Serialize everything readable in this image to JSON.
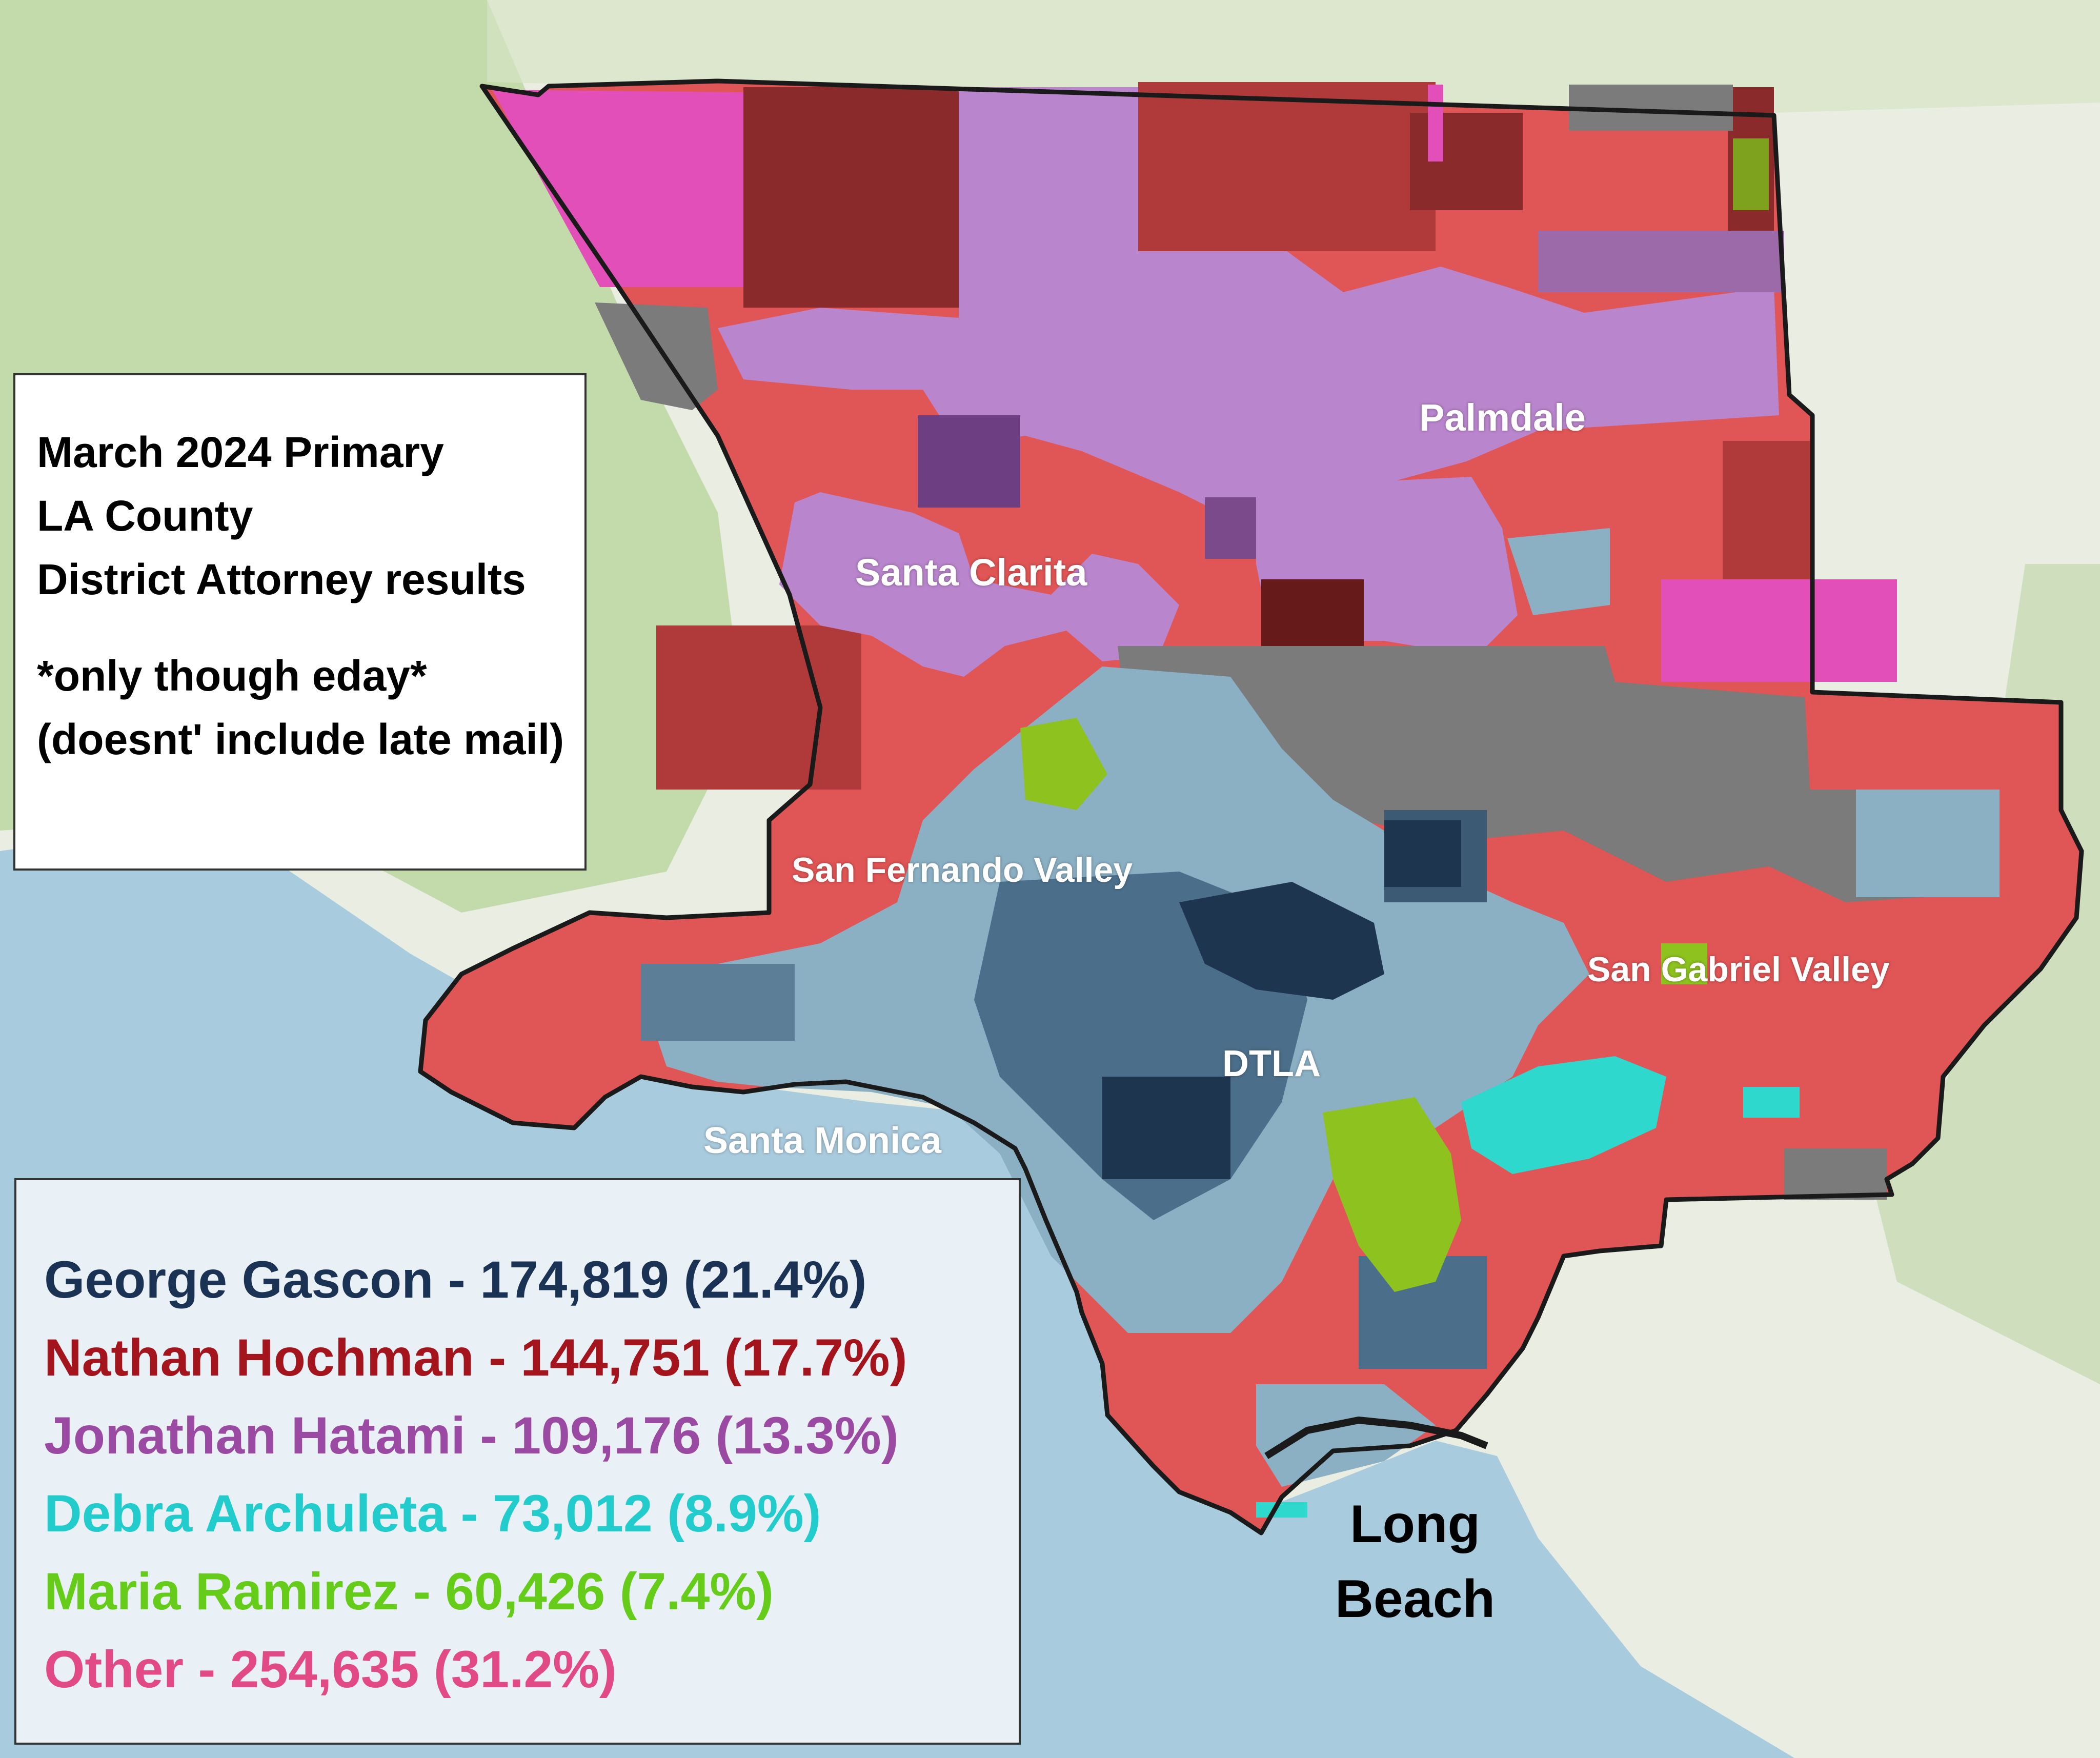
{
  "info": {
    "line1": "March 2024 Primary",
    "line2": "LA County",
    "line3": "District Attorney results",
    "note1": "*only though eday*",
    "note2": "(doesnt' include late mail)"
  },
  "places": {
    "palmdale": "Palmdale",
    "santa_clarita": "Santa Clarita",
    "san_fernando_valley": "San Fernando Valley",
    "san_gabriel_valley": "San Gabriel Valley",
    "dtla": "DTLA",
    "santa_monica": "Santa Monica",
    "long_beach_1": "Long",
    "long_beach_2": "Beach"
  },
  "legend": [
    {
      "text": "George Gascon - 174,819 (21.4%)",
      "color": "#1a3355"
    },
    {
      "text": "Nathan Hochman - 144,751 (17.7%)",
      "color": "#a3141c"
    },
    {
      "text": "Jonathan Hatami - 109,176 (13.3%)",
      "color": "#9b4aa3"
    },
    {
      "text": "Debra Archuleta - 73,012 (8.9%)",
      "color": "#22cccc"
    },
    {
      "text": "Maria Ramirez - 60,426 (7.4%)",
      "color": "#66cc1a"
    },
    {
      "text": "Other - 254,635 (31.2%)",
      "color": "#e24a86"
    }
  ],
  "map_colors": {
    "ocean": "#a9cbde",
    "land": "#e9ede2",
    "hills": "#b9d49e",
    "hochman": "#e05555",
    "hochman_dark": "#b03a3a",
    "hochman_darkest": "#8b2a2a",
    "hatami": "#b985cc",
    "hatami_dark": "#7a4a8a",
    "other": "#e24fb8",
    "tie_gray": "#7b7b7b",
    "gascon_light": "#8bb0c4",
    "gascon_mid": "#4b6f8a",
    "gascon_dark": "#1e3550",
    "archuleta": "#2ed8cc",
    "ramirez": "#8dc21f",
    "outline": "#1a1a1a"
  }
}
